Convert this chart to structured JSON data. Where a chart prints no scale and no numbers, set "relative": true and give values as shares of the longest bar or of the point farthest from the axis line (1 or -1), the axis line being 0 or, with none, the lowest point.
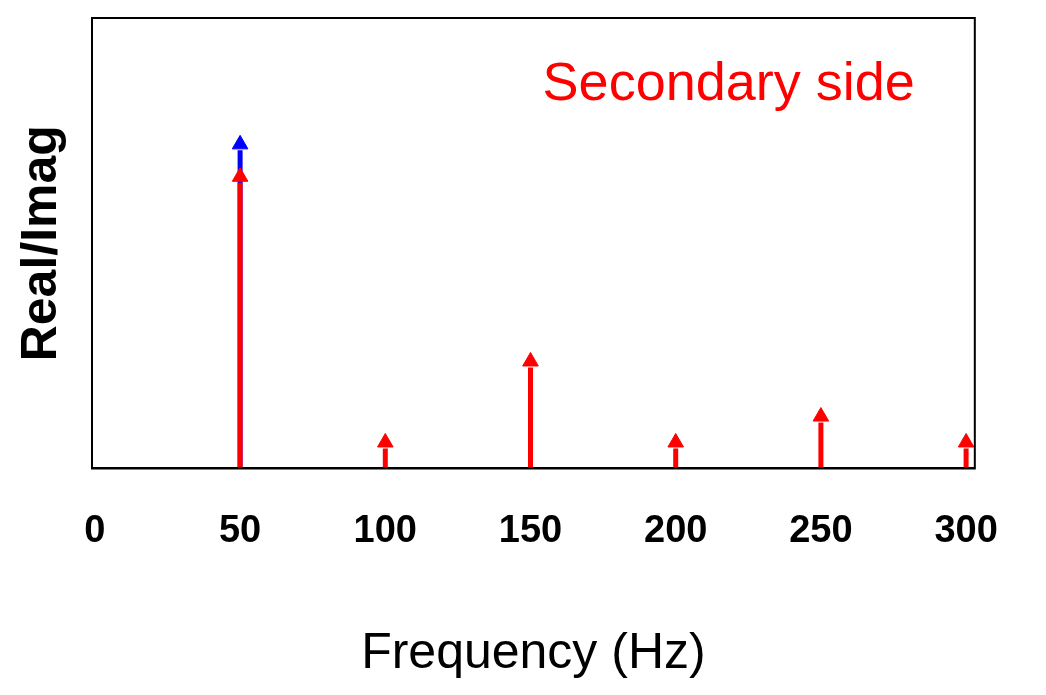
{
  "chart_data": {
    "type": "lollipop",
    "relative": true,
    "xlabel": "Frequency (Hz)",
    "ylabel": "Real/Imag",
    "annotations": [
      "Secondary side"
    ],
    "xlim": [
      -1,
      303
    ],
    "xticks": [
      0,
      50,
      100,
      150,
      200,
      250,
      300
    ],
    "grid": false,
    "legend": false,
    "marker": "triangle",
    "series": [
      {
        "color": "#0000ff",
        "x": [
          50
        ],
        "values": [
          1
        ]
      },
      {
        "color": "#ff0000",
        "x": [
          50,
          100,
          150,
          200,
          250,
          300
        ],
        "values": [
          0.9,
          0.08,
          0.33,
          0.08,
          0.16,
          0.08
        ]
      }
    ]
  }
}
